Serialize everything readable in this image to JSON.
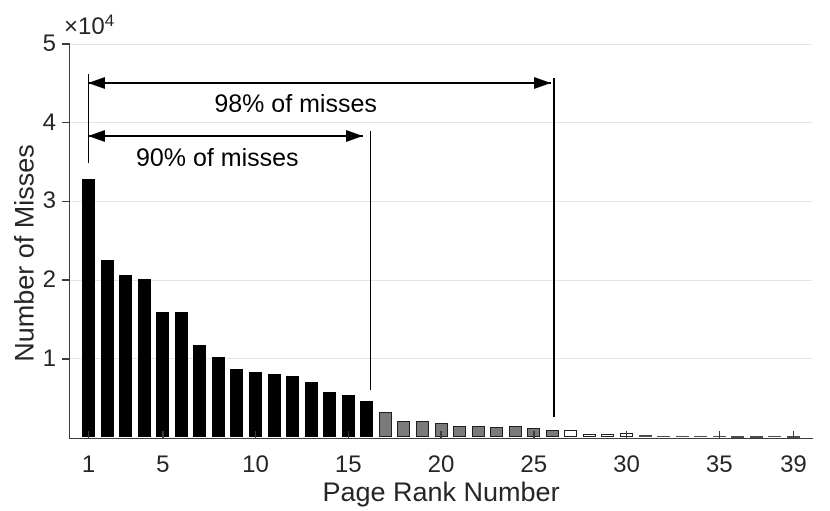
{
  "axis": {
    "y_label": "Number of Misses",
    "x_label": "Page Rank Number",
    "exponent_base": "×10",
    "exponent_power": "4"
  },
  "colors": {
    "bar_black": "#000000",
    "bar_gray": "#7a7a7a",
    "bar_white": "#ffffff",
    "bar_tail": "#4d4d4d",
    "bar_edge": "#1f1f1f",
    "axis_line": "#3c3c3c",
    "gridline": "#e4e4e4",
    "tick_text": "#262626",
    "annotation": "#000000"
  },
  "chart_data": {
    "type": "bar",
    "title": "",
    "xlabel": "Page Rank Number",
    "ylabel": "Number of Misses",
    "y_multiplier_label": "×10⁴",
    "xlim": [
      0,
      40
    ],
    "ylim": [
      0,
      50000
    ],
    "grid": "horizontal",
    "legend": "none",
    "xticks": [
      {
        "v": 1,
        "label": "1"
      },
      {
        "v": 5,
        "label": "5"
      },
      {
        "v": 10,
        "label": "10"
      },
      {
        "v": 15,
        "label": "15"
      },
      {
        "v": 20,
        "label": "20"
      },
      {
        "v": 25,
        "label": "25"
      },
      {
        "v": 30,
        "label": "30"
      },
      {
        "v": 35,
        "label": "35"
      },
      {
        "v": 39,
        "label": "39"
      }
    ],
    "yticks": [
      {
        "v": 10000,
        "label": "1"
      },
      {
        "v": 20000,
        "label": "2"
      },
      {
        "v": 30000,
        "label": "3"
      },
      {
        "v": 40000,
        "label": "4"
      },
      {
        "v": 50000,
        "label": "5"
      }
    ],
    "bars": [
      {
        "rank": 1,
        "value": 32800,
        "group": "black"
      },
      {
        "rank": 2,
        "value": 22500,
        "group": "black"
      },
      {
        "rank": 3,
        "value": 20600,
        "group": "black"
      },
      {
        "rank": 4,
        "value": 20200,
        "group": "black"
      },
      {
        "rank": 5,
        "value": 16000,
        "group": "black"
      },
      {
        "rank": 6,
        "value": 15900,
        "group": "black"
      },
      {
        "rank": 7,
        "value": 11800,
        "group": "black"
      },
      {
        "rank": 8,
        "value": 10200,
        "group": "black"
      },
      {
        "rank": 9,
        "value": 8700,
        "group": "black"
      },
      {
        "rank": 10,
        "value": 8300,
        "group": "black"
      },
      {
        "rank": 11,
        "value": 8100,
        "group": "black"
      },
      {
        "rank": 12,
        "value": 7800,
        "group": "black"
      },
      {
        "rank": 13,
        "value": 7000,
        "group": "black"
      },
      {
        "rank": 14,
        "value": 5800,
        "group": "black"
      },
      {
        "rank": 15,
        "value": 5400,
        "group": "black"
      },
      {
        "rank": 16,
        "value": 4600,
        "group": "black"
      },
      {
        "rank": 17,
        "value": 3300,
        "group": "gray"
      },
      {
        "rank": 18,
        "value": 2050,
        "group": "gray"
      },
      {
        "rank": 19,
        "value": 2150,
        "group": "gray"
      },
      {
        "rank": 20,
        "value": 1850,
        "group": "gray"
      },
      {
        "rank": 21,
        "value": 1400,
        "group": "gray"
      },
      {
        "rank": 22,
        "value": 1450,
        "group": "gray"
      },
      {
        "rank": 23,
        "value": 1300,
        "group": "gray"
      },
      {
        "rank": 24,
        "value": 1450,
        "group": "gray"
      },
      {
        "rank": 25,
        "value": 1150,
        "group": "gray"
      },
      {
        "rank": 26,
        "value": 1000,
        "group": "gray"
      },
      {
        "rank": 27,
        "value": 1000,
        "group": "white"
      },
      {
        "rank": 28,
        "value": 500,
        "group": "white"
      },
      {
        "rank": 29,
        "value": 450,
        "group": "white"
      },
      {
        "rank": 30,
        "value": 550,
        "group": "white"
      },
      {
        "rank": 31,
        "value": 300,
        "group": "tail"
      },
      {
        "rank": 32,
        "value": 200,
        "group": "tail"
      },
      {
        "rank": 33,
        "value": 250,
        "group": "tail"
      },
      {
        "rank": 34,
        "value": 200,
        "group": "tail"
      },
      {
        "rank": 35,
        "value": 250,
        "group": "tail"
      },
      {
        "rank": 36,
        "value": 150,
        "group": "tail"
      },
      {
        "rank": 37,
        "value": 150,
        "group": "tail"
      },
      {
        "rank": 38,
        "value": 200,
        "group": "tail"
      },
      {
        "rank": 39,
        "value": 150,
        "group": "tail"
      }
    ],
    "groups": {
      "black": "ranks 1-16 (90% of misses)",
      "gray": "ranks 17-26 (remainder of 98% of misses)",
      "white": "ranks 27-30",
      "tail": "ranks 31-39"
    },
    "annotations": [
      {
        "label": "98% of misses",
        "percent": 98,
        "from_rank": 1,
        "boundary_after_rank": 26
      },
      {
        "label": "90% of misses",
        "percent": 90,
        "from_rank": 1,
        "boundary_after_rank": 16
      }
    ]
  }
}
